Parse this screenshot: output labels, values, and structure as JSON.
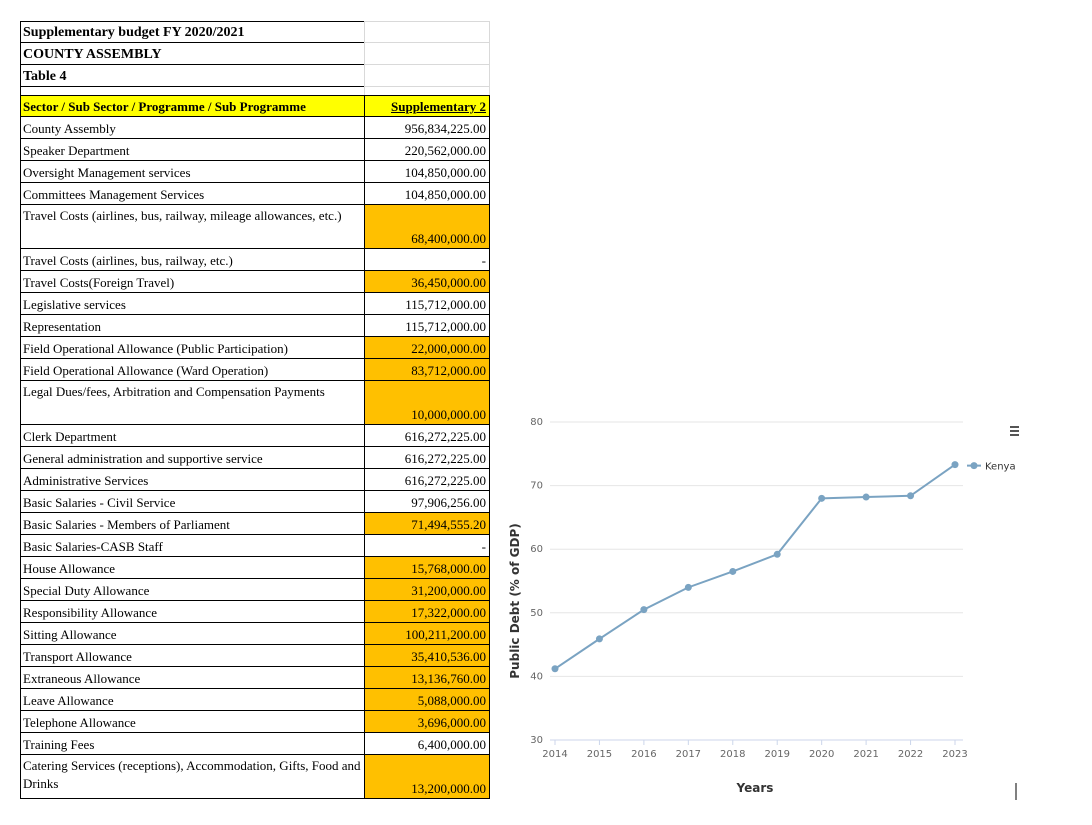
{
  "document": {
    "title_lines": [
      "Supplementary budget FY 2020/2021",
      "COUNTY ASSEMBLY",
      "Table 4"
    ],
    "header": {
      "col1": "Sector / Sub Sector / Programme / Sub Programme",
      "col2": "Supplementary 2"
    },
    "rows": [
      {
        "label": "County Assembly",
        "value": "956,834,225.00",
        "highlight": false,
        "tall": false
      },
      {
        "label": "Speaker Department",
        "value": "220,562,000.00",
        "highlight": false,
        "tall": false
      },
      {
        "label": "Oversight Management services",
        "value": "104,850,000.00",
        "highlight": false,
        "tall": false
      },
      {
        "label": "Committees Management Services",
        "value": "104,850,000.00",
        "highlight": false,
        "tall": false
      },
      {
        "label": "Travel Costs (airlines, bus, railway, mileage allowances, etc.)",
        "value": "68,400,000.00",
        "highlight": true,
        "tall": true
      },
      {
        "label": "Travel Costs (airlines, bus, railway, etc.)",
        "value": "-",
        "highlight": false,
        "tall": false
      },
      {
        "label": "Travel Costs(Foreign Travel)",
        "value": "36,450,000.00",
        "highlight": true,
        "tall": false
      },
      {
        "label": "Legislative services",
        "value": "115,712,000.00",
        "highlight": false,
        "tall": false
      },
      {
        "label": "Representation",
        "value": "115,712,000.00",
        "highlight": false,
        "tall": false
      },
      {
        "label": "Field Operational Allowance (Public Participation)",
        "value": "22,000,000.00",
        "highlight": true,
        "tall": false
      },
      {
        "label": "Field Operational Allowance (Ward Operation)",
        "value": "83,712,000.00",
        "highlight": true,
        "tall": false
      },
      {
        "label": "Legal Dues/fees, Arbitration and Compensation Payments",
        "value": "10,000,000.00",
        "highlight": true,
        "tall": true
      },
      {
        "label": "Clerk Department",
        "value": "616,272,225.00",
        "highlight": false,
        "tall": false
      },
      {
        "label": "General administration and supportive service",
        "value": "616,272,225.00",
        "highlight": false,
        "tall": false
      },
      {
        "label": "Administrative Services",
        "value": "616,272,225.00",
        "highlight": false,
        "tall": false
      },
      {
        "label": "Basic Salaries - Civil Service",
        "value": "97,906,256.00",
        "highlight": false,
        "tall": false
      },
      {
        "label": "Basic Salaries - Members of Parliament",
        "value": "71,494,555.20",
        "highlight": true,
        "tall": false
      },
      {
        "label": "Basic Salaries-CASB Staff",
        "value": "-",
        "highlight": false,
        "tall": false
      },
      {
        "label": "House Allowance",
        "value": "15,768,000.00",
        "highlight": true,
        "tall": false
      },
      {
        "label": "Special Duty Allowance",
        "value": "31,200,000.00",
        "highlight": true,
        "tall": false
      },
      {
        "label": "Responsibility Allowance",
        "value": "17,322,000.00",
        "highlight": true,
        "tall": false
      },
      {
        "label": "Sitting Allowance",
        "value": "100,211,200.00",
        "highlight": true,
        "tall": false
      },
      {
        "label": "Transport Allowance",
        "value": "35,410,536.00",
        "highlight": true,
        "tall": false
      },
      {
        "label": "Extraneous Allowance",
        "value": "13,136,760.00",
        "highlight": true,
        "tall": false
      },
      {
        "label": "Leave Allowance",
        "value": "5,088,000.00",
        "highlight": true,
        "tall": false
      },
      {
        "label": "Telephone Allowance",
        "value": "3,696,000.00",
        "highlight": true,
        "tall": false
      },
      {
        "label": "Training Fees",
        "value": "6,400,000.00",
        "highlight": false,
        "tall": false
      },
      {
        "label": "Catering Services (receptions), Accommodation, Gifts, Food and Drinks",
        "value": "13,200,000.00",
        "highlight": true,
        "tall": true
      }
    ],
    "colors": {
      "highlight": "#ffc000",
      "header": "#ffff00"
    }
  },
  "chart_data": {
    "type": "line",
    "x": [
      2014,
      2015,
      2016,
      2017,
      2018,
      2019,
      2020,
      2021,
      2022,
      2023
    ],
    "x_tick_labels": [
      "2014",
      "2015",
      "2016",
      "2017",
      "2018",
      "2019",
      "2020",
      "2021",
      "2022",
      "2023"
    ],
    "series": [
      {
        "name": "Kenya",
        "values": [
          41.2,
          45.9,
          50.5,
          54.0,
          56.5,
          59.2,
          68.0,
          68.2,
          68.4,
          73.3
        ],
        "color": "#7aa3c2"
      }
    ],
    "y_ticks": [
      30,
      40,
      50,
      60,
      70,
      80
    ],
    "y_tick_labels": [
      "30",
      "40",
      "50",
      "60",
      "70",
      "80"
    ],
    "ylim": [
      30,
      80
    ],
    "xlabel": "Years",
    "ylabel": "Public Debt (% of GDP)",
    "grid": true,
    "legend": "top-right",
    "menu_icon": "hamburger-menu-icon"
  }
}
